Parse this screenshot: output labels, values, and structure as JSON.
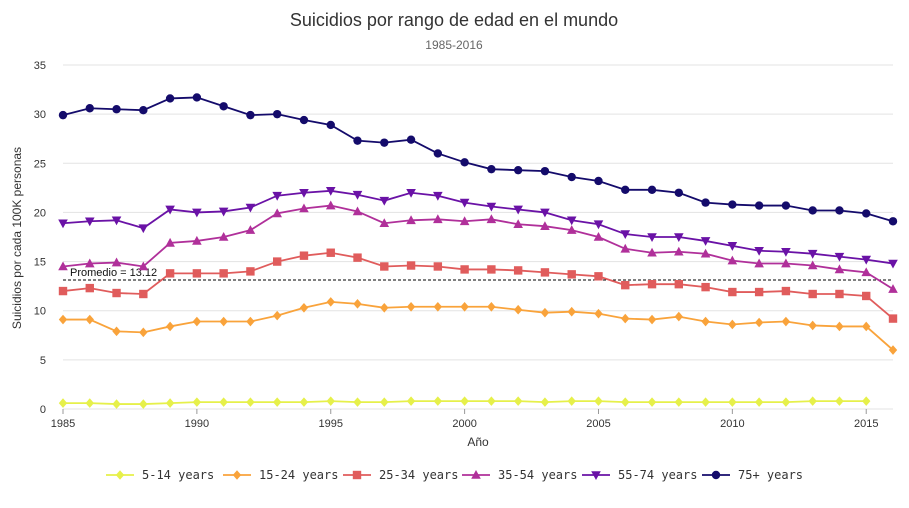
{
  "chart_data": {
    "type": "line",
    "title": "Suicidios por rango de edad en el mundo",
    "subtitle": "1985-2016",
    "xlabel": "Año",
    "ylabel": "Suicidios por cada 100K personas",
    "xlim": [
      1985,
      2016
    ],
    "ylim": [
      0,
      35
    ],
    "xticks": [
      1985,
      1990,
      1995,
      2000,
      2005,
      2010,
      2015
    ],
    "yticks": [
      0,
      5,
      10,
      15,
      20,
      25,
      30,
      35
    ],
    "grid": "horizontal",
    "legend_position": "bottom",
    "average": {
      "label": "Promedio = 13.12",
      "value": 13.12
    },
    "x": [
      1985,
      1986,
      1987,
      1988,
      1989,
      1990,
      1991,
      1992,
      1993,
      1994,
      1995,
      1996,
      1997,
      1998,
      1999,
      2000,
      2001,
      2002,
      2003,
      2004,
      2005,
      2006,
      2007,
      2008,
      2009,
      2010,
      2011,
      2012,
      2013,
      2014,
      2015,
      2016
    ],
    "series": [
      {
        "name": "5-14 years",
        "color": "#e6f04a",
        "marker": "diamond",
        "values": [
          0.6,
          0.6,
          0.5,
          0.5,
          0.6,
          0.7,
          0.7,
          0.7,
          0.7,
          0.7,
          0.8,
          0.7,
          0.7,
          0.8,
          0.8,
          0.8,
          0.8,
          0.8,
          0.7,
          0.8,
          0.8,
          0.7,
          0.7,
          0.7,
          0.7,
          0.7,
          0.7,
          0.7,
          0.8,
          0.8,
          0.8,
          null
        ]
      },
      {
        "name": "15-24 years",
        "color": "#f9a33b",
        "marker": "diamond",
        "values": [
          9.1,
          9.1,
          7.9,
          7.8,
          8.4,
          8.9,
          8.9,
          8.9,
          9.5,
          10.3,
          10.9,
          10.7,
          10.3,
          10.4,
          10.4,
          10.4,
          10.4,
          10.1,
          9.8,
          9.9,
          9.7,
          9.2,
          9.1,
          9.4,
          8.9,
          8.6,
          8.8,
          8.9,
          8.5,
          8.4,
          8.4,
          6.0
        ]
      },
      {
        "name": "25-34 years",
        "color": "#e05c5c",
        "marker": "square",
        "values": [
          12.0,
          12.3,
          11.8,
          11.7,
          13.8,
          13.8,
          13.8,
          14.0,
          15.0,
          15.6,
          15.9,
          15.4,
          14.5,
          14.6,
          14.5,
          14.2,
          14.2,
          14.1,
          13.9,
          13.7,
          13.5,
          12.6,
          12.7,
          12.7,
          12.4,
          11.9,
          11.9,
          12.0,
          11.7,
          11.7,
          11.5,
          9.2
        ]
      },
      {
        "name": "35-54 years",
        "color": "#b0309a",
        "marker": "triangle-up",
        "values": [
          14.5,
          14.8,
          14.9,
          14.5,
          16.9,
          17.1,
          17.5,
          18.2,
          19.9,
          20.4,
          20.7,
          20.1,
          18.9,
          19.2,
          19.3,
          19.1,
          19.3,
          18.8,
          18.6,
          18.2,
          17.5,
          16.3,
          15.9,
          16.0,
          15.8,
          15.1,
          14.8,
          14.8,
          14.6,
          14.2,
          13.9,
          12.2
        ]
      },
      {
        "name": "55-74 years",
        "color": "#6a12a6",
        "marker": "triangle-down",
        "values": [
          18.9,
          19.1,
          19.2,
          18.4,
          20.3,
          20.0,
          20.1,
          20.5,
          21.7,
          22.0,
          22.2,
          21.8,
          21.2,
          22.0,
          21.7,
          21.0,
          20.6,
          20.3,
          20.0,
          19.2,
          18.8,
          17.8,
          17.5,
          17.5,
          17.1,
          16.6,
          16.1,
          16.0,
          15.8,
          15.5,
          15.2,
          14.8
        ]
      },
      {
        "name": "75+ years",
        "color": "#140b6b",
        "marker": "circle",
        "values": [
          29.9,
          30.6,
          30.5,
          30.4,
          31.6,
          31.7,
          30.8,
          29.9,
          30.0,
          29.4,
          28.9,
          27.3,
          27.1,
          27.4,
          26.0,
          25.1,
          24.4,
          24.3,
          24.2,
          23.6,
          23.2,
          22.3,
          22.3,
          22.0,
          21.0,
          20.8,
          20.7,
          20.7,
          20.2,
          20.2,
          19.9,
          19.1
        ]
      }
    ]
  }
}
